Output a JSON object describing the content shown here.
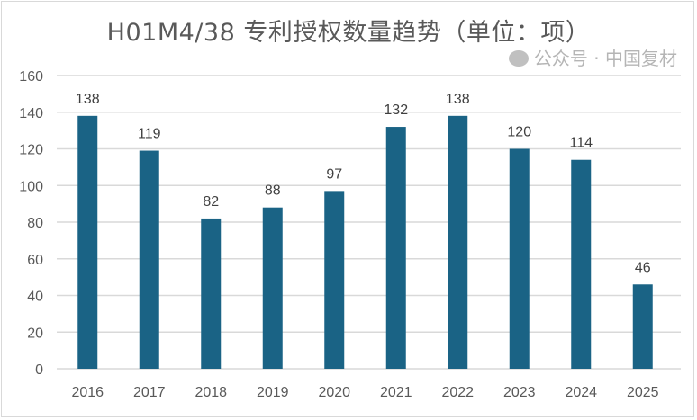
{
  "chart_data": {
    "type": "bar",
    "title": "H01M4/38  专利授权数量趋势（单位：项）",
    "categories": [
      "2016",
      "2017",
      "2018",
      "2019",
      "2020",
      "2021",
      "2022",
      "2023",
      "2024",
      "2025"
    ],
    "values": [
      138,
      119,
      82,
      88,
      97,
      132,
      138,
      120,
      114,
      46
    ],
    "xlabel": "",
    "ylabel": "",
    "ylim": [
      0,
      160
    ],
    "yticks": [
      0,
      20,
      40,
      60,
      80,
      100,
      120,
      140,
      160
    ],
    "grid": true,
    "data_labels": true,
    "bar_color": "#1a6385"
  },
  "watermark": "公众号 · 中国复材"
}
